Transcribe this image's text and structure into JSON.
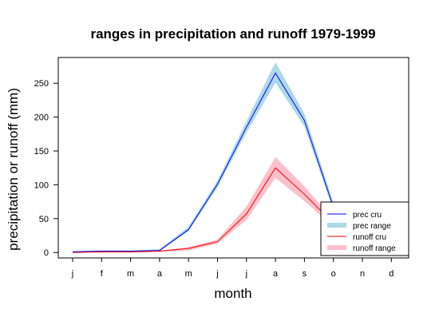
{
  "chart_data": {
    "type": "line",
    "title": "ranges in precipitation and runoff 1979-1999",
    "xlabel": "month",
    "ylabel": "precipitation or runoff (mm)",
    "categories": [
      "j",
      "f",
      "m",
      "a",
      "m",
      "j",
      "j",
      "a",
      "s",
      "o",
      "n",
      "d"
    ],
    "ylim": [
      -8,
      288
    ],
    "yticks": [
      0,
      50,
      100,
      150,
      200,
      250
    ],
    "grid": false,
    "legend_position": "bottom-right",
    "series": [
      {
        "name": "prec range",
        "kind": "band",
        "color": "#add8e6",
        "lower": [
          0,
          1,
          1,
          2,
          31,
          96,
          177,
          251,
          186,
          61,
          16,
          4
        ],
        "upper": [
          2,
          3,
          3,
          5,
          38,
          106,
          194,
          281,
          205,
          74,
          23,
          7
        ]
      },
      {
        "name": "runoff range",
        "kind": "band",
        "color": "#ffc0cb",
        "lower": [
          0,
          0,
          0,
          1,
          3,
          13,
          48,
          110,
          76,
          38,
          14,
          3
        ],
        "upper": [
          1,
          1,
          1,
          3,
          8,
          19,
          68,
          141,
          98,
          48,
          19,
          5
        ]
      },
      {
        "name": "prec cru",
        "kind": "line",
        "color": "#0000ff",
        "values": [
          1,
          2,
          2,
          3,
          34,
          101,
          185,
          265,
          195,
          67,
          19,
          5
        ]
      },
      {
        "name": "runoff cru",
        "kind": "line",
        "color": "#ff0000",
        "values": [
          0,
          1,
          1,
          2,
          6,
          16,
          57,
          125,
          86,
          43,
          16,
          4
        ]
      }
    ],
    "legend": [
      "prec cru",
      "prec range",
      "runoff cru",
      "runoff range"
    ]
  }
}
